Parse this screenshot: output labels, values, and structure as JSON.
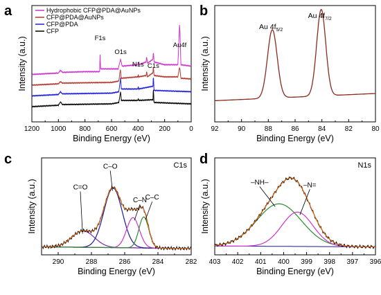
{
  "chart_data": [
    {
      "panel": "a",
      "type": "line",
      "xlabel": "Binding Energy (eV)",
      "ylabel": "Intensity (a.u.)",
      "xlim": [
        1200,
        0
      ],
      "xticks": [
        1200,
        1000,
        800,
        600,
        400,
        200,
        0
      ],
      "legend": {
        "placement": "top-left",
        "entries": [
          "Hydrophobic CFP@PDA@AuNPs",
          "CFP@PDA@AuNPs",
          "CFP@PDA",
          "CFP"
        ]
      },
      "series": [
        {
          "name": "Hydrophobic CFP@PDA@AuNPs",
          "color": "#cc33cc",
          "offset": 75,
          "points": [
            [
              1200,
              0
            ],
            [
              1000,
              2
            ],
            [
              985,
              6
            ],
            [
              970,
              3
            ],
            [
              800,
              4
            ],
            [
              690,
              4
            ],
            [
              686,
              28
            ],
            [
              682,
              8
            ],
            [
              550,
              8
            ],
            [
              532,
              22
            ],
            [
              520,
              12
            ],
            [
              402,
              14
            ],
            [
              399,
              18
            ],
            [
              395,
              14
            ],
            [
              340,
              18
            ],
            [
              335,
              26
            ],
            [
              330,
              16
            ],
            [
              288,
              22
            ],
            [
              285,
              34
            ],
            [
              280,
              18
            ],
            [
              200,
              14
            ],
            [
              100,
              14
            ],
            [
              88,
              72
            ],
            [
              84,
              60
            ],
            [
              78,
              14
            ],
            [
              0,
              12
            ]
          ]
        },
        {
          "name": "CFP@PDA@AuNPs",
          "color": "#b03a2e",
          "offset": 50,
          "points": [
            [
              1200,
              0
            ],
            [
              1000,
              2
            ],
            [
              985,
              5
            ],
            [
              970,
              3
            ],
            [
              600,
              4
            ],
            [
              545,
              6
            ],
            [
              533,
              24
            ],
            [
              528,
              10
            ],
            [
              402,
              12
            ],
            [
              399,
              15
            ],
            [
              395,
              12
            ],
            [
              340,
              14
            ],
            [
              335,
              20
            ],
            [
              330,
              12
            ],
            [
              288,
              18
            ],
            [
              285,
              28
            ],
            [
              280,
              14
            ],
            [
              200,
              12
            ],
            [
              100,
              12
            ],
            [
              88,
              26
            ],
            [
              84,
              22
            ],
            [
              78,
              10
            ],
            [
              0,
              9
            ]
          ]
        },
        {
          "name": "CFP@PDA",
          "color": "#1f1fd8",
          "offset": 25,
          "points": [
            [
              1200,
              0
            ],
            [
              1000,
              2
            ],
            [
              985,
              6
            ],
            [
              970,
              3
            ],
            [
              600,
              4
            ],
            [
              545,
              6
            ],
            [
              532,
              26
            ],
            [
              526,
              10
            ],
            [
              402,
              10
            ],
            [
              399,
              14
            ],
            [
              395,
              10
            ],
            [
              288,
              14
            ],
            [
              285,
              30
            ],
            [
              280,
              8
            ],
            [
              0,
              6
            ]
          ]
        },
        {
          "name": "CFP",
          "color": "#000000",
          "offset": 0,
          "points": [
            [
              1200,
              0
            ],
            [
              1000,
              2
            ],
            [
              985,
              7
            ],
            [
              970,
              3
            ],
            [
              600,
              4
            ],
            [
              545,
              6
            ],
            [
              532,
              22
            ],
            [
              526,
              9
            ],
            [
              402,
              9
            ],
            [
              399,
              12
            ],
            [
              395,
              9
            ],
            [
              288,
              10
            ],
            [
              285,
              28
            ],
            [
              280,
              6
            ],
            [
              0,
              4
            ]
          ]
        }
      ],
      "annotations": [
        {
          "label": "F1s",
          "x": 686
        },
        {
          "label": "O1s",
          "x": 532
        },
        {
          "label": "N1s",
          "x": 400
        },
        {
          "label": "C1s",
          "x": 285
        },
        {
          "label": "Au4f",
          "x": 86
        }
      ]
    },
    {
      "panel": "b",
      "type": "line",
      "xlabel": "Binding Energy (eV)",
      "ylabel": "Intensity (a.u.)",
      "xlim": [
        92,
        80
      ],
      "xticks": [
        92,
        90,
        88,
        86,
        84,
        82,
        80
      ],
      "series": [
        {
          "color": "#8b2a1a",
          "peaks": [
            {
              "center": 87.7,
              "height": 0.76,
              "fwhm": 0.85
            },
            {
              "center": 84.05,
              "height": 0.96,
              "fwhm": 0.8
            }
          ],
          "background": [
            [
              92,
              0.02
            ],
            [
              80,
              0.1
            ]
          ]
        }
      ],
      "annotations": [
        {
          "label": "Au 4f",
          "sub": "5/2",
          "x": 87.7
        },
        {
          "label": "Au 4f",
          "sub": "7/2",
          "x": 84.05
        }
      ]
    },
    {
      "panel": "c",
      "type": "line",
      "title": "C1s",
      "xlabel": "Binding Energy (eV)",
      "ylabel": "Intensity (a.u.)",
      "xlim": [
        291,
        282
      ],
      "xticks": [
        290,
        288,
        286,
        284,
        282
      ],
      "baseline": [
        [
          291,
          0.03
        ],
        [
          282,
          0.01
        ]
      ],
      "components": [
        {
          "label": "C=O",
          "center": 288.5,
          "height": 0.2,
          "fwhm": 1.6,
          "color": "#7a2aa8"
        },
        {
          "label": "C–O",
          "center": 286.7,
          "height": 0.73,
          "fwhm": 1.3,
          "color": "#1a1aa0"
        },
        {
          "label": "C–N",
          "center": 285.5,
          "height": 0.37,
          "fwhm": 0.9,
          "color": "#cc33cc"
        },
        {
          "label": "C–C",
          "center": 284.85,
          "height": 0.38,
          "fwhm": 0.7,
          "color": "#2b8a2b"
        }
      ],
      "envelope_color": "#d2691e",
      "raw_color": "#000000"
    },
    {
      "panel": "d",
      "type": "line",
      "title": "N1s",
      "xlabel": "Binding Energy (eV)",
      "ylabel": "Intensity (a.u.)",
      "xlim": [
        403,
        396
      ],
      "xticks": [
        403,
        402,
        401,
        400,
        399,
        398,
        397,
        396
      ],
      "baseline": [
        [
          403,
          0.04
        ],
        [
          396,
          0.03
        ]
      ],
      "components": [
        {
          "label": "–NH–",
          "center": 400.2,
          "height": 0.52,
          "fwhm": 2.3,
          "color": "#2b8a2b"
        },
        {
          "label": "–N=",
          "center": 399.4,
          "height": 0.42,
          "fwhm": 1.6,
          "color": "#cc33cc"
        }
      ],
      "envelope_color": "#d2691e",
      "raw_color": "#000000"
    }
  ]
}
